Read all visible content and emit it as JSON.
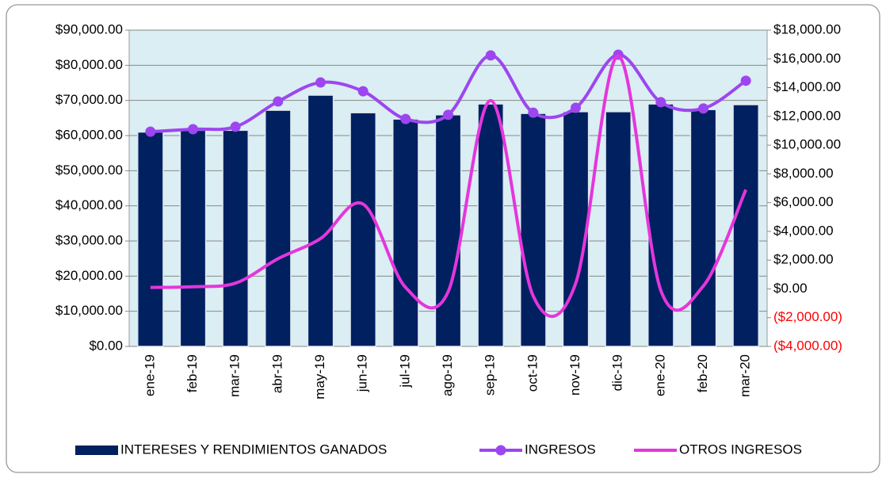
{
  "chart_data": {
    "type": "bar",
    "categories": [
      "ene-19",
      "feb-19",
      "mar-19",
      "abr-19",
      "may-19",
      "jun-19",
      "jul-19",
      "ago-19",
      "sep-19",
      "oct-19",
      "nov-19",
      "dic-19",
      "ene-20",
      "feb-20",
      "mar-20"
    ],
    "series": [
      {
        "name": "INTERESES Y RENDIMIENTOS GANADOS",
        "type": "bar",
        "color": "#002060",
        "values": [
          61000,
          61500,
          61500,
          67200,
          71500,
          66500,
          64700,
          65900,
          69000,
          66300,
          66800,
          66800,
          69000,
          67400,
          68800
        ]
      },
      {
        "name": "INGRESOS",
        "type": "line",
        "color": "#9d46f0",
        "markers": true,
        "values": [
          61100,
          61800,
          62500,
          69700,
          75100,
          72600,
          64700,
          65900,
          82800,
          66500,
          67900,
          83000,
          69500,
          67700,
          75600
        ]
      },
      {
        "name": "OTROS INGRESOS",
        "type": "line",
        "color": "#e536dc",
        "markers": false,
        "axis": "y2",
        "values": [
          100,
          150,
          400,
          2100,
          3500,
          5900,
          100,
          -200,
          13100,
          -500,
          400,
          16200,
          -100,
          200,
          6900
        ]
      }
    ],
    "ylim": [
      0,
      90000
    ],
    "yticks": [
      {
        "value": 0,
        "label": "$0.00"
      },
      {
        "value": 10000,
        "label": "$10,000.00"
      },
      {
        "value": 20000,
        "label": "$20,000.00"
      },
      {
        "value": 30000,
        "label": "$30,000.00"
      },
      {
        "value": 40000,
        "label": "$40,000.00"
      },
      {
        "value": 50000,
        "label": "$50,000.00"
      },
      {
        "value": 60000,
        "label": "$60,000.00"
      },
      {
        "value": 70000,
        "label": "$70,000.00"
      },
      {
        "value": 80000,
        "label": "$80,000.00"
      },
      {
        "value": 90000,
        "label": "$90,000.00"
      }
    ],
    "y2lim": [
      -4000,
      18000
    ],
    "y2ticks": [
      {
        "value": -4000,
        "label": "($4,000.00)"
      },
      {
        "value": -2000,
        "label": "($2,000.00)"
      },
      {
        "value": 0,
        "label": "$0.00"
      },
      {
        "value": 2000,
        "label": "$2,000.00"
      },
      {
        "value": 4000,
        "label": "$4,000.00"
      },
      {
        "value": 6000,
        "label": "$6,000.00"
      },
      {
        "value": 8000,
        "label": "$8,000.00"
      },
      {
        "value": 10000,
        "label": "$10,000.00"
      },
      {
        "value": 12000,
        "label": "$12,000.00"
      },
      {
        "value": 14000,
        "label": "$14,000.00"
      },
      {
        "value": 16000,
        "label": "$16,000.00"
      },
      {
        "value": 18000,
        "label": "$18,000.00"
      }
    ],
    "negative_label_color": "#ff0000",
    "grid": true,
    "plot_background": "#daeef3",
    "legend": "bottom"
  }
}
